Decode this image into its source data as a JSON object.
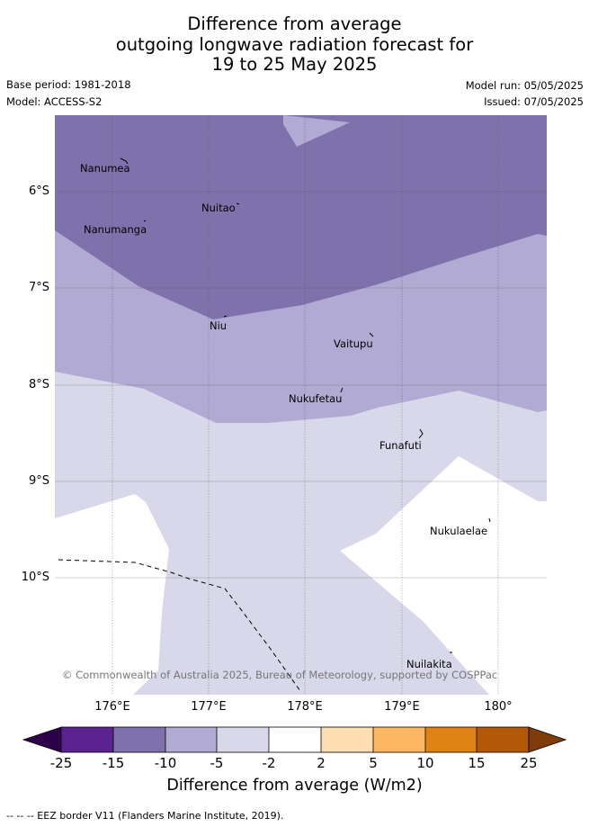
{
  "title": {
    "line1": "Difference from average",
    "line2": "outgoing longwave radiation forecast for",
    "line3": "19 to 25 May 2025"
  },
  "meta": {
    "base_period": "Base period: 1981-2018",
    "model": "Model: ACCESS-S2",
    "model_run": "Model run: 05/05/2025",
    "issued": "Issued: 07/05/2025"
  },
  "map": {
    "lon_range": [
      175.5,
      180.6
    ],
    "lat_range": [
      -11.2,
      -5.2
    ],
    "lat_ticks": [
      "6°S",
      "7°S",
      "8°S",
      "9°S",
      "10°S"
    ],
    "lon_ticks": [
      "176°E",
      "177°E",
      "178°E",
      "179°E",
      "180°"
    ],
    "islands": [
      "Nanumea",
      "Nuitao",
      "Nanumanga",
      "Niu",
      "Vaitupu",
      "Nukufetau",
      "Funafuti",
      "Nukulaelae",
      "Nuilakita"
    ],
    "copyright": "© Commonwealth of Australia 2025, Bureau of Meteorology, supported by COSPPac",
    "colors": {
      "class_-15_-10": "#7f72ac",
      "class_-10_-5": "#b1abd3",
      "class_-5_-2": "#d8d8ea",
      "class_-2_2": "#ffffff"
    }
  },
  "colorbar": {
    "ticks": [
      "-25",
      "-15",
      "-10",
      "-5",
      "-2",
      "2",
      "5",
      "10",
      "15",
      "25"
    ],
    "colors": [
      "#5b2390",
      "#7f72ac",
      "#b1abd3",
      "#d8d8ea",
      "#ffffff",
      "#fddeb3",
      "#fdb762",
      "#e08214",
      "#b35806"
    ],
    "under_color": "#2d004b",
    "over_color": "#7f3b08",
    "label": "Difference from average (W/m2)"
  },
  "footer": "-- -- -- EEZ border V11 (Flanders Marine Institute, 2019)."
}
